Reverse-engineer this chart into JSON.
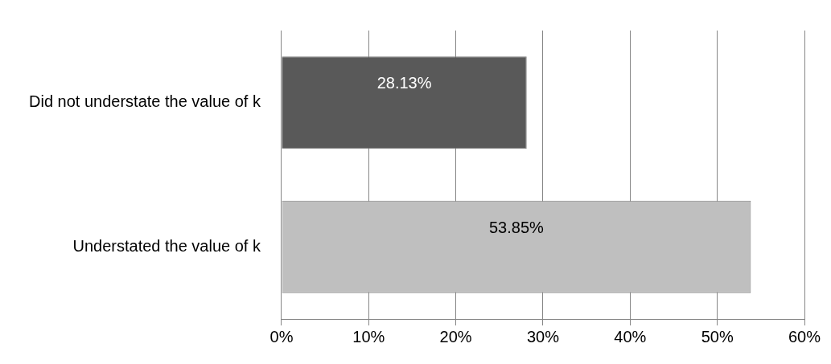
{
  "chart_data": {
    "type": "bar",
    "orientation": "horizontal",
    "categories": [
      "Did not understate the value of k",
      "Understated the value of k"
    ],
    "values": [
      28.13,
      53.85
    ],
    "colors": [
      "#595959",
      "#bfbfbf"
    ],
    "value_labels": [
      "28.13%",
      "53.85%"
    ],
    "xlim": [
      0,
      60
    ],
    "xticks": [
      {
        "value": 0,
        "label": "0%"
      },
      {
        "value": 10,
        "label": "10%"
      },
      {
        "value": 20,
        "label": "20%"
      },
      {
        "value": 30,
        "label": "30%"
      },
      {
        "value": 40,
        "label": "40%"
      },
      {
        "value": 50,
        "label": "50%"
      },
      {
        "value": 60,
        "label": "60%"
      }
    ],
    "grid": "x",
    "legend": false
  }
}
